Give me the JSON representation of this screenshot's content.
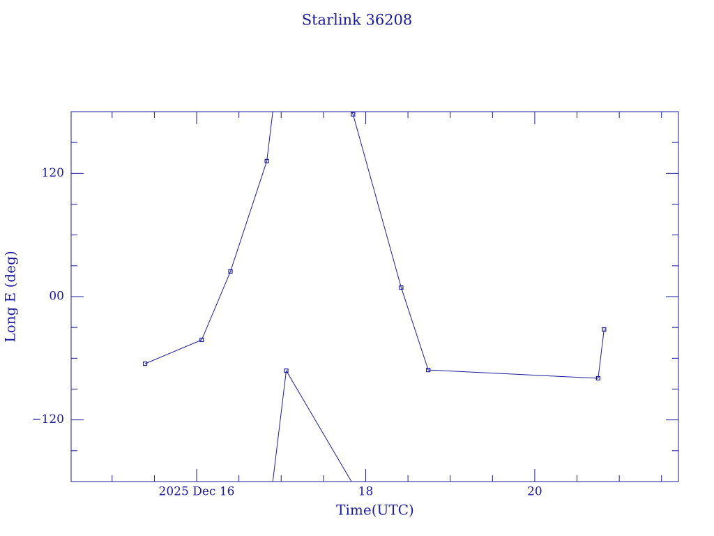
{
  "chart_data": {
    "type": "line",
    "title": "Starlink 36208",
    "x_label": "Time(UTC)",
    "y_label": "Long E (deg)",
    "color": "#1a1a9c",
    "x": [
      15.39,
      16.06,
      16.4,
      16.83,
      17.06,
      17.85,
      18.42,
      18.74,
      20.75,
      20.82
    ],
    "values": [
      -65.3,
      -42.1,
      24.5,
      131.9,
      -72.1,
      177.4,
      8.8,
      -71.4,
      -79.5,
      -32.0
    ],
    "xlim": [
      14.515,
      21.7
    ],
    "xticks": [
      {
        "value": 16,
        "label": "2025 Dec 16"
      },
      18,
      20
    ],
    "x_minor_ticks": [
      15,
      15.5,
      16.5,
      17,
      17.5,
      18.5,
      19,
      19.5,
      20.5,
      21,
      21.5
    ],
    "ylim": [
      -180,
      180
    ],
    "yticks": [
      {
        "value": 120,
        "label": "120"
      },
      {
        "value": 0,
        "label": "00"
      },
      {
        "value": -120,
        "label": "−120"
      }
    ],
    "y_minor_ticks": [
      -150,
      -90,
      -60,
      -30,
      30,
      60,
      90,
      150
    ]
  }
}
